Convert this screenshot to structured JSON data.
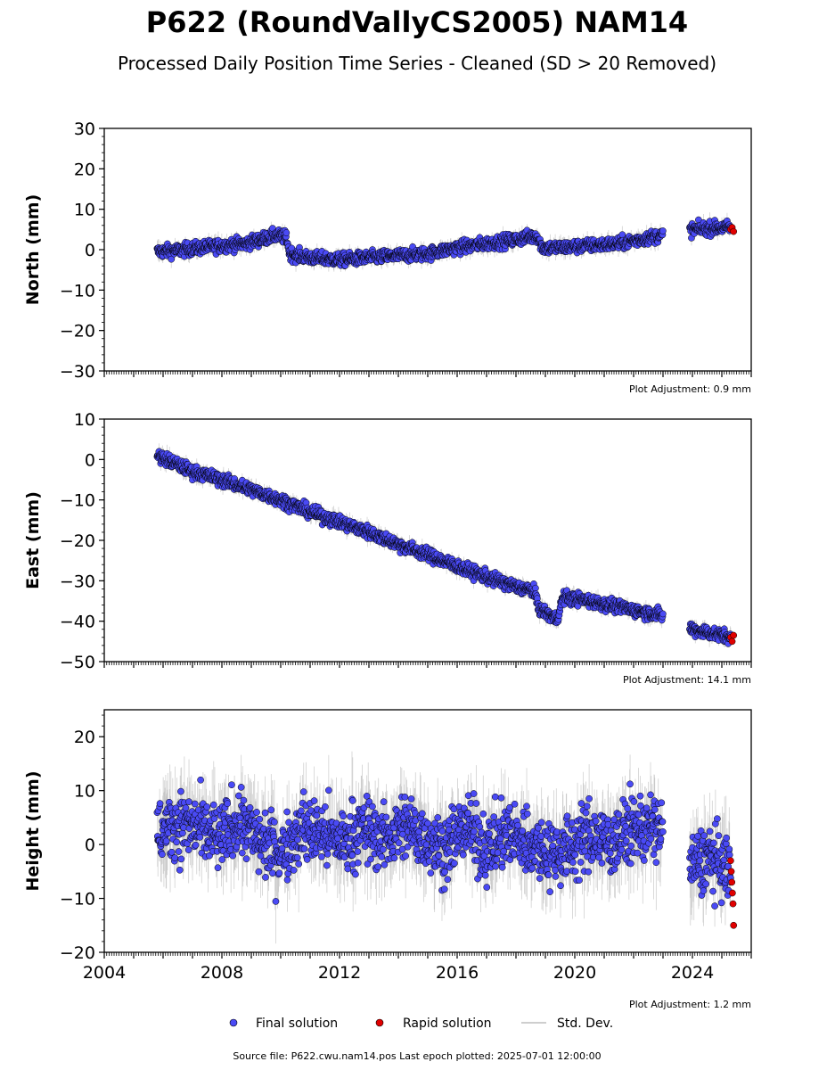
{
  "header": {
    "title": "P622 (RoundVallyCS2005) NAM14",
    "subtitle": "Processed Daily Position Time Series - Cleaned (SD > 20 Removed)"
  },
  "legend": {
    "final_label": "Final solution",
    "rapid_label": "Rapid solution",
    "std_label": "Std. Dev."
  },
  "footer": {
    "source": "Source file: P622.cwu.nam14.pos  Last epoch plotted: 2025-07-01 12:00:00"
  },
  "colors": {
    "final": "#4a4af5",
    "rapid": "#e00000",
    "std": "#bdbdbd",
    "edge": "#000000"
  },
  "chart_data": [
    {
      "type": "scatter",
      "ylabel": "North (mm)",
      "adjustment": "Plot Adjustment: 0.9 mm",
      "xlim": [
        2004,
        2026
      ],
      "ylim": [
        -30,
        30
      ],
      "yticks": [
        -30,
        -20,
        -10,
        0,
        10,
        20,
        30
      ],
      "xticks": [],
      "grid": false,
      "series": [
        {
          "name": "Final solution",
          "x": [
            2005.8,
            2006.5,
            2007.3,
            2008.0,
            2008.8,
            2009.3,
            2009.8,
            2010.2,
            2010.3,
            2011.0,
            2012.0,
            2013.0,
            2014.0,
            2015.0,
            2016.0,
            2017.0,
            2018.0,
            2018.7,
            2018.9,
            2019.5,
            2020.5,
            2021.5,
            2022.2,
            2022.9,
            2024.0,
            2024.5,
            2025.0,
            2025.3
          ],
          "y": [
            -0.5,
            -0.2,
            0.5,
            1.0,
            1.5,
            2.5,
            3.5,
            3.0,
            -1.0,
            -2.0,
            -2.5,
            -2.0,
            -1.5,
            -1.0,
            0.5,
            1.5,
            2.5,
            3.5,
            0.5,
            0.5,
            1.0,
            1.5,
            2.5,
            3.5,
            5.0,
            5.2,
            5.5,
            5.5
          ]
        },
        {
          "name": "Rapid solution",
          "x": [
            2025.3,
            2025.35,
            2025.4
          ],
          "y": [
            5.0,
            5.5,
            4.5
          ]
        }
      ],
      "noise": 1.3,
      "std_spread": 1.5
    },
    {
      "type": "scatter",
      "ylabel": "East (mm)",
      "adjustment": "Plot Adjustment: 14.1 mm",
      "xlim": [
        2004,
        2026
      ],
      "ylim": [
        -50,
        10
      ],
      "yticks": [
        -50,
        -40,
        -30,
        -20,
        -10,
        0,
        10
      ],
      "xticks": [],
      "grid": false,
      "series": [
        {
          "name": "Final solution",
          "x": [
            2005.8,
            2007.0,
            2008.0,
            2009.0,
            2010.0,
            2011.0,
            2012.0,
            2013.0,
            2014.0,
            2015.0,
            2016.0,
            2017.0,
            2018.0,
            2018.6,
            2018.8,
            2019.4,
            2019.6,
            2020.5,
            2021.5,
            2022.9,
            2024.0,
            2025.3
          ],
          "y": [
            1.0,
            -3.0,
            -5.0,
            -7.5,
            -10.0,
            -13.0,
            -15.5,
            -18.0,
            -21.0,
            -23.5,
            -26.5,
            -29.0,
            -31.5,
            -32.5,
            -37.0,
            -39.5,
            -34.0,
            -35.0,
            -36.5,
            -38.5,
            -42.0,
            -44.0
          ]
        },
        {
          "name": "Rapid solution",
          "x": [
            2025.3,
            2025.35,
            2025.4
          ],
          "y": [
            -44.0,
            -45.0,
            -43.5
          ]
        }
      ],
      "noise": 1.3,
      "std_spread": 1.5
    },
    {
      "type": "scatter",
      "ylabel": "Height (mm)",
      "adjustment": "Plot Adjustment: 1.2 mm",
      "xlim": [
        2004,
        2026
      ],
      "ylim": [
        -20,
        25
      ],
      "yticks": [
        -20,
        -10,
        0,
        10,
        20
      ],
      "xticks": [
        2004,
        2008,
        2012,
        2016,
        2020,
        2024
      ],
      "grid": false,
      "series": [
        {
          "name": "Final solution",
          "x": [
            2005.8,
            2006.5,
            2007.2,
            2007.9,
            2008.6,
            2009.3,
            2010.0,
            2010.7,
            2011.4,
            2012.1,
            2012.8,
            2013.5,
            2014.2,
            2014.9,
            2015.6,
            2016.3,
            2017.0,
            2017.7,
            2018.4,
            2019.1,
            2019.8,
            2020.5,
            2021.2,
            2021.9,
            2022.9,
            2024.0,
            2024.6,
            2025.3
          ],
          "y": [
            2.0,
            4.0,
            3.0,
            1.0,
            4.5,
            0.5,
            -1.5,
            3.0,
            2.0,
            0.5,
            3.0,
            1.0,
            3.5,
            1.5,
            -1.0,
            3.5,
            -1.0,
            2.0,
            0.5,
            -1.5,
            -1.0,
            2.0,
            0.0,
            3.0,
            3.0,
            -4.0,
            -2.5,
            -5.0
          ]
        },
        {
          "name": "Rapid solution",
          "x": [
            2025.3,
            2025.32,
            2025.34,
            2025.36,
            2025.38,
            2025.4
          ],
          "y": [
            -3.0,
            -5.0,
            -7.0,
            -9.0,
            -11.0,
            -15.0
          ]
        }
      ],
      "noise": 5.0,
      "std_spread": 6.0
    }
  ]
}
